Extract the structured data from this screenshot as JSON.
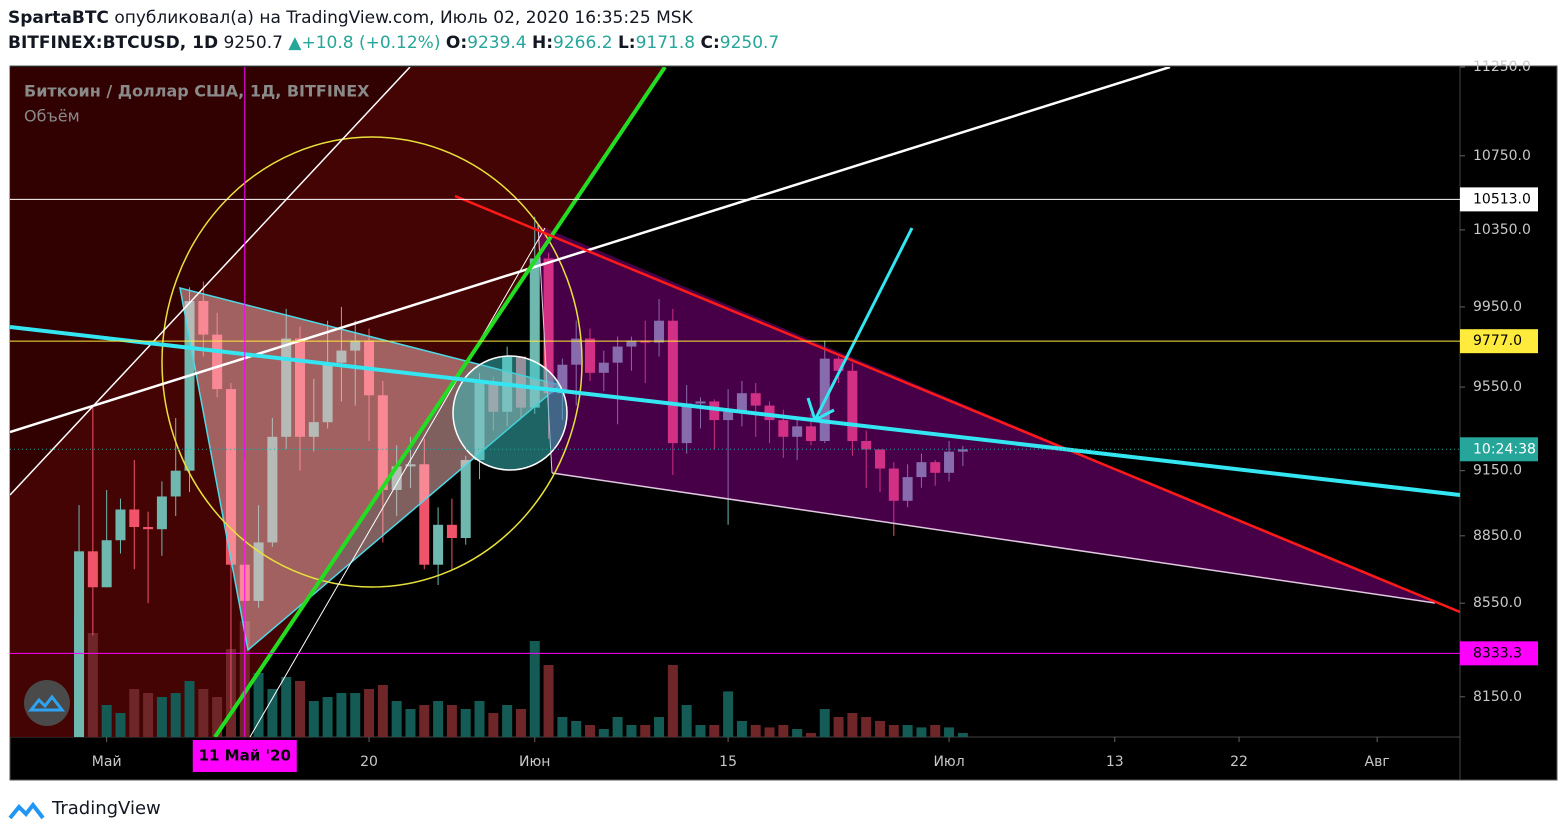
{
  "header": {
    "author": "SpartaBTC",
    "published": "опубликовал(а) на TradingView.com, Июль 02, 2020 16:35:25 MSK",
    "symbol": "BITFINEX:BTCUSD, 1D",
    "last": 9250.7,
    "arrow": "▲",
    "change": "+10.8 (+0.12%)",
    "ohlc": [
      {
        "label": "O:",
        "value": 9239.4
      },
      {
        "label": "H:",
        "value": 9266.2
      },
      {
        "label": "L:",
        "value": 9171.8
      },
      {
        "label": "C:",
        "value": 9250.7
      }
    ]
  },
  "chart_data": {
    "type": "candlestick",
    "title": "Биткоин / Доллар США, 1Д, BITFINEX",
    "subtitle": "Объём",
    "x": [
      "2020-04-29",
      "2020-04-30",
      "2020-05-01",
      "2020-05-02",
      "2020-05-03",
      "2020-05-04",
      "2020-05-05",
      "2020-05-06",
      "2020-05-07",
      "2020-05-08",
      "2020-05-09",
      "2020-05-10",
      "2020-05-11",
      "2020-05-12",
      "2020-05-13",
      "2020-05-14",
      "2020-05-15",
      "2020-05-16",
      "2020-05-17",
      "2020-05-18",
      "2020-05-19",
      "2020-05-20",
      "2020-05-21",
      "2020-05-22",
      "2020-05-23",
      "2020-05-24",
      "2020-05-25",
      "2020-05-26",
      "2020-05-27",
      "2020-05-28",
      "2020-05-29",
      "2020-05-30",
      "2020-05-31",
      "2020-06-01",
      "2020-06-02",
      "2020-06-03",
      "2020-06-04",
      "2020-06-05",
      "2020-06-06",
      "2020-06-07",
      "2020-06-08",
      "2020-06-09",
      "2020-06-10",
      "2020-06-11",
      "2020-06-12",
      "2020-06-13",
      "2020-06-14",
      "2020-06-15",
      "2020-06-16",
      "2020-06-17",
      "2020-06-18",
      "2020-06-19",
      "2020-06-20",
      "2020-06-21",
      "2020-06-22",
      "2020-06-23",
      "2020-06-24",
      "2020-06-25",
      "2020-06-26",
      "2020-06-27",
      "2020-06-28",
      "2020-06-29",
      "2020-06-30",
      "2020-07-01",
      "2020-07-02"
    ],
    "open": [
      7770,
      8780,
      8620,
      8830,
      8970,
      8890,
      8880,
      9030,
      9150,
      9980,
      9810,
      9540,
      8720,
      8560,
      8820,
      9310,
      9790,
      9310,
      9380,
      9670,
      9730,
      9780,
      9510,
      9060,
      9170,
      9180,
      8720,
      8900,
      8840,
      9200,
      9570,
      9430,
      9700,
      9450,
      10200,
      9520,
      9660,
      9790,
      9620,
      9670,
      9750,
      9780,
      9770,
      9880,
      9280,
      9470,
      9480,
      9390,
      9430,
      9520,
      9460,
      9390,
      9310,
      9360,
      9290,
      9690,
      9630,
      9290,
      9250,
      9160,
      9010,
      9120,
      9190,
      9140,
      9239.4
    ],
    "high": [
      8990,
      9460,
      9060,
      9020,
      9200,
      8960,
      9100,
      9400,
      10050,
      10080,
      9920,
      9570,
      9200,
      8990,
      9400,
      9940,
      9850,
      9590,
      9880,
      9950,
      9880,
      9840,
      9580,
      9270,
      9310,
      9300,
      8980,
      9020,
      9220,
      9620,
      9600,
      9750,
      9700,
      10420,
      10230,
      9690,
      9880,
      9840,
      9730,
      9800,
      9800,
      9880,
      9990,
      9940,
      9560,
      9500,
      9490,
      9540,
      9580,
      9570,
      9480,
      9440,
      9400,
      9420,
      9780,
      9700,
      9670,
      9340,
      9250,
      9190,
      9180,
      9230,
      9200,
      9290,
      9266.2
    ],
    "low": [
      7730,
      8410,
      8620,
      8770,
      8700,
      8550,
      8760,
      8940,
      9050,
      9700,
      9500,
      8100,
      8200,
      8530,
      8800,
      9250,
      9150,
      9240,
      9350,
      9480,
      9460,
      9290,
      8820,
      8940,
      9070,
      8700,
      8630,
      8700,
      8810,
      9110,
      9340,
      9360,
      9400,
      9420,
      9300,
      9390,
      9460,
      9580,
      9530,
      9370,
      9630,
      9570,
      9700,
      9130,
      9230,
      9350,
      9250,
      8900,
      9360,
      9310,
      9280,
      9210,
      9200,
      9270,
      9280,
      9570,
      9220,
      9070,
      9050,
      8850,
      8980,
      9070,
      9080,
      9100,
      9171.8
    ],
    "close": [
      8780,
      8620,
      8830,
      8970,
      8890,
      8880,
      9030,
      9150,
      9980,
      9810,
      9540,
      8720,
      8560,
      8820,
      9310,
      9790,
      9310,
      9380,
      9670,
      9730,
      9780,
      9510,
      9060,
      9170,
      9180,
      8720,
      8900,
      8840,
      9200,
      9570,
      9430,
      9700,
      9450,
      10200,
      9520,
      9660,
      9790,
      9620,
      9670,
      9750,
      9780,
      9770,
      9880,
      9280,
      9470,
      9480,
      9390,
      9430,
      9520,
      9460,
      9390,
      9310,
      9360,
      9290,
      9690,
      9630,
      9290,
      9250,
      9160,
      9010,
      9120,
      9190,
      9140,
      9239.4,
      9250.7
    ],
    "volume": [
      150,
      130,
      40,
      30,
      60,
      55,
      50,
      55,
      70,
      60,
      50,
      110,
      145,
      80,
      60,
      75,
      70,
      45,
      50,
      55,
      55,
      60,
      65,
      45,
      35,
      40,
      45,
      40,
      35,
      45,
      30,
      40,
      35,
      120,
      90,
      25,
      20,
      15,
      10,
      25,
      15,
      15,
      25,
      90,
      40,
      15,
      15,
      57,
      20,
      15,
      12,
      15,
      10,
      5,
      35,
      25,
      30,
      25,
      20,
      15,
      15,
      12,
      15,
      12,
      5
    ],
    "up_color": "#6fb8b0",
    "down_color": "#f0546a",
    "volume_up_color": "#145a55",
    "volume_down_color": "#6e2628",
    "log_scale": true,
    "ylim": [
      7984,
      11250
    ],
    "yticks": [
      {
        "value": 11250,
        "label": "11250.0"
      },
      {
        "value": 10750,
        "label": "10750.0"
      },
      {
        "value": 10350,
        "label": "10350.0"
      },
      {
        "value": 9950,
        "label": "9950.0"
      },
      {
        "value": 9550,
        "label": "9550.0"
      },
      {
        "value": 9150,
        "label": "9150.0"
      },
      {
        "value": 8850,
        "label": "8850.0"
      },
      {
        "value": 8550,
        "label": "8550.0"
      },
      {
        "value": 8150,
        "label": "8150.0"
      }
    ],
    "xlim": [
      "2020-04-24",
      "2020-08-07"
    ],
    "xticks": [
      {
        "value": "2020-05-01",
        "label": "Май"
      },
      {
        "value": "2020-05-20",
        "label": "20"
      },
      {
        "value": "2020-06-01",
        "label": "Июн"
      },
      {
        "value": "2020-06-15",
        "label": "15"
      },
      {
        "value": "2020-07-01",
        "label": "Июл"
      },
      {
        "value": "2020-07-13",
        "label": "13"
      },
      {
        "value": "2020-07-22",
        "label": "22"
      },
      {
        "value": "2020-08-01",
        "label": "Авг"
      }
    ],
    "levels": [
      {
        "value": 10513,
        "label": "10513.0",
        "color": "#ffffff"
      },
      {
        "value": 9777,
        "label": "9777.0",
        "color": "#ffeb3b"
      },
      {
        "value": 8333.3,
        "label": "8333.3",
        "color": "#ff00ff"
      }
    ],
    "countdown": "10:24:38",
    "countdown_color": "#26a69a",
    "cursor_date": {
      "value": "2020-05-11",
      "label": "11 Май '20"
    }
  },
  "footer": {
    "brand": "TradingView"
  }
}
